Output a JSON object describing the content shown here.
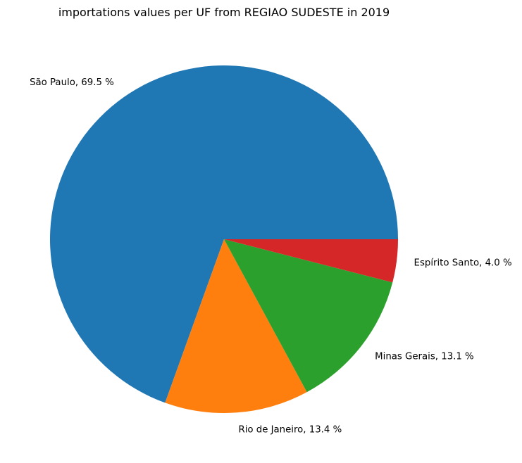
{
  "chart_data": {
    "type": "pie",
    "title": "importations values per UF from REGIAO SUDESTE in 2019",
    "slices": [
      {
        "label": "São Paulo",
        "value": 69.5,
        "color": "#1f77b4"
      },
      {
        "label": "Rio de Janeiro",
        "value": 13.4,
        "color": "#ff7f0e"
      },
      {
        "label": "Minas Gerais",
        "value": 13.1,
        "color": "#2ca02c"
      },
      {
        "label": "Espírito Santo",
        "value": 4.0,
        "color": "#d62728"
      }
    ],
    "label_format": "{label}, {value} %",
    "start_angle": 0,
    "direction": "counterclockwise"
  }
}
